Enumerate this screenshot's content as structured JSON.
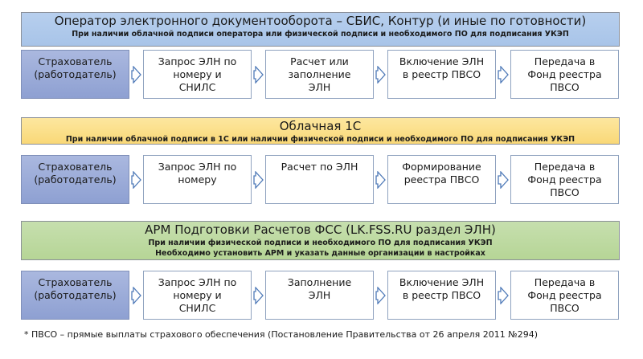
{
  "sections": [
    {
      "title": "Оператор электронного документооборота – СБИС, Контур (и иные по готовности)",
      "subtitles": [
        "При наличии облачной подписи оператора или физической подписи и необходимого ПО для подписания УКЭП"
      ],
      "color": "#a8c4e8",
      "steps": [
        [
          "Страхователь",
          "(работодатель)"
        ],
        [
          "Запрос ЭЛН по",
          "номеру и",
          "СНИЛС"
        ],
        [
          "Расчет или",
          "заполнение",
          "ЭЛН"
        ],
        [
          "Включение ЭЛН",
          "в реестр ПВСО"
        ],
        [
          "Передача в",
          "Фонд реестра",
          "ПВСО"
        ]
      ]
    },
    {
      "title": "Облачная 1С",
      "subtitles": [
        "При наличии облачной подписи в 1С или наличии физической подписи и необходимого ПО для подписания УКЭП"
      ],
      "color": "#f9d877",
      "steps": [
        [
          "Страхователь",
          "(работодатель)"
        ],
        [
          "Запрос ЭЛН по",
          "номеру"
        ],
        [
          "Расчет по ЭЛН"
        ],
        [
          "Формирование",
          "реестра ПВСО"
        ],
        [
          "Передача в",
          "Фонд реестра",
          "ПВСО"
        ]
      ]
    },
    {
      "title": "АРМ Подготовки Расчетов ФСС (LK.FSS.RU раздел ЭЛН)",
      "subtitles": [
        "При наличии физической подписи и необходимого ПО для подписания УКЭП",
        "Необходимо установить АРМ и указать данные организации в настройках"
      ],
      "color": "#b6d596",
      "steps": [
        [
          "Страхователь",
          "(работодатель)"
        ],
        [
          "Запрос ЭЛН по",
          "номеру и",
          "СНИЛС"
        ],
        [
          "Заполнение",
          "ЭЛН"
        ],
        [
          "Включение ЭЛН",
          "в реестр ПВСО"
        ],
        [
          "Передача в",
          "Фонд реестра",
          "ПВСО"
        ]
      ]
    }
  ],
  "footnote": "* ПВСО – прямые выплаты страхового обеспечения  (Постановление Правительства от 26 апреля 2011 №294)",
  "colors": {
    "box_border": "#8fa2bf",
    "first_box": "#8ea0d2",
    "arrow_fill": "#ffffff",
    "arrow_stroke": "#4f7ab8"
  }
}
